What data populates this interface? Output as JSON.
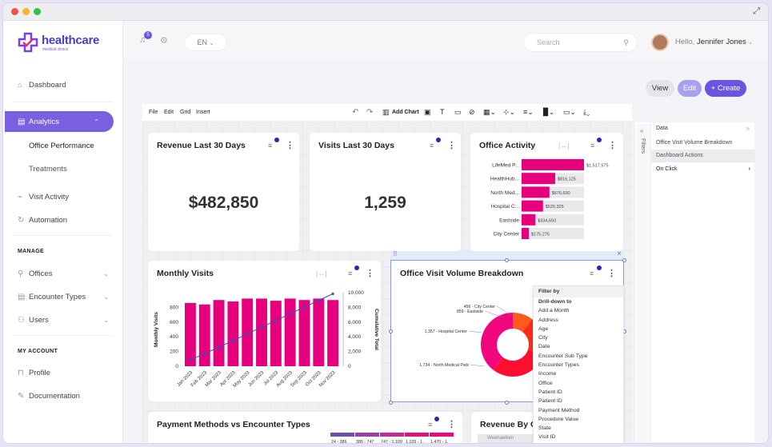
{
  "window": {
    "dot_colors": [
      "#f2504b",
      "#f5b531",
      "#30c146"
    ]
  },
  "brand": {
    "name": "healthcare",
    "tagline": "medical clinics"
  },
  "sidebar": {
    "dashboard": "Dashboard",
    "analytics": "Analytics",
    "analytics_sub": [
      "Office Performance",
      "Treatments"
    ],
    "visit_activity": "Visit Activity",
    "automation": "Automation",
    "manage_heading": "MANAGE",
    "manage_items": [
      "Offices",
      "Encounter Types",
      "Users"
    ],
    "account_heading": "MY ACCOUNT",
    "account_items": [
      "Profile",
      "Documentation"
    ]
  },
  "topbar": {
    "notification_count": "5",
    "language": "EN",
    "search_placeholder": "Search",
    "greeting": "Hello,",
    "user_name": "Jennifer Jones"
  },
  "actions": {
    "view": "View",
    "edit": "Edit",
    "create": "+ Create"
  },
  "toolbar": {
    "file": "File",
    "edit": "Edit",
    "grid": "Grid",
    "insert": "Insert",
    "add_chart": "Add Chart"
  },
  "cards": {
    "revenue": {
      "title": "Revenue Last 30 Days",
      "value": "$482,850"
    },
    "visits": {
      "title": "Visits Last 30 Days",
      "value": "1,259"
    },
    "office_activity": {
      "title": "Office Activity"
    },
    "monthly_visits": {
      "title": "Monthly Visits"
    },
    "breakdown": {
      "title": "Office Visit Volume Breakdown"
    },
    "payment": {
      "title": "Payment Methods vs Encounter Types"
    },
    "revenue_by": {
      "title": "Revenue By Of",
      "map_label": "Weehawken"
    }
  },
  "right_panel": {
    "filters_tab": "Filters",
    "data_label": "Data",
    "items": [
      "Office Visit Volume Breakdown",
      "Dashboard Actions",
      "On Click"
    ]
  },
  "filter_menu": {
    "header": "Filter by",
    "drill_header": "Drill-down to",
    "items": [
      "Add a Month",
      "Address",
      "Age",
      "City",
      "Date",
      "Encounter Sub Type",
      "Encounter Types",
      "Income",
      "Office",
      "Patient ID",
      "Patient ID",
      "Payment Method",
      "Procedure Value",
      "State",
      "Visit ID"
    ]
  },
  "chart_data": [
    {
      "type": "bar",
      "title": "Office Activity",
      "orientation": "horizontal",
      "categories": [
        "LifeMed P...",
        "HealthHub...",
        "North Med...",
        "Hospital C...",
        "Eastside",
        "City Center"
      ],
      "values": [
        1517575,
        816125,
        676690,
        520325,
        334650,
        175275
      ],
      "value_labels": [
        "$1,517,575",
        "$816,125",
        "$676,690",
        "$520,325",
        "$334,650",
        "$175,275"
      ],
      "colors": {
        "bar": "#e6007e",
        "track": "#e9e9ec"
      }
    },
    {
      "type": "bar",
      "title": "Monthly Visits",
      "categories": [
        "Jan 2023",
        "Feb 2023",
        "Mar 2023",
        "Apr 2023",
        "May 2023",
        "Jun 2023",
        "Jul 2023",
        "Aug 2023",
        "Sep 2023",
        "Oct 2023",
        "Nov 2023"
      ],
      "values": [
        860,
        840,
        900,
        880,
        920,
        920,
        890,
        920,
        900,
        920,
        900
      ],
      "line": {
        "name": "Cumulative Total",
        "values": [
          860,
          1700,
          2600,
          3480,
          4400,
          5320,
          6210,
          7130,
          8030,
          8950,
          9850
        ]
      },
      "ylabel": "Monthly Visits",
      "y2label": "Cumulative Total",
      "ylim": [
        0,
        1000
      ],
      "y2lim": [
        0,
        10000
      ],
      "yticks": [
        "0",
        "200",
        "400",
        "600",
        "800"
      ],
      "y2ticks": [
        "0",
        "2,000",
        "4,000",
        "6,000",
        "8,000",
        "10,000"
      ],
      "colors": {
        "bar": "#e6007e",
        "line": "#3a4fb5"
      }
    },
    {
      "type": "pie",
      "title": "Office Visit Volume Breakdown",
      "donut": true,
      "labels": [
        "456 - City Center",
        "859 - Eastside",
        "1,357 - Hospital Center",
        "1,734 - North Medical Park"
      ],
      "values": [
        456,
        859,
        1357,
        1734
      ],
      "colors": [
        "#ff5a1e",
        "#ff2a1a",
        "#ff0f2f",
        "#f0077e"
      ]
    },
    {
      "type": "heatmap",
      "title": "Payment Methods vs Encounter Types",
      "legend_labels": [
        "24 - 386",
        "386 - 747",
        "747 - 1,109",
        "1,109 - 1,",
        "1,470 - 1,"
      ],
      "colors": [
        "#6b4fa8",
        "#9a3fa8",
        "#c42a97",
        "#e0127f",
        "#f0077e"
      ]
    }
  ]
}
